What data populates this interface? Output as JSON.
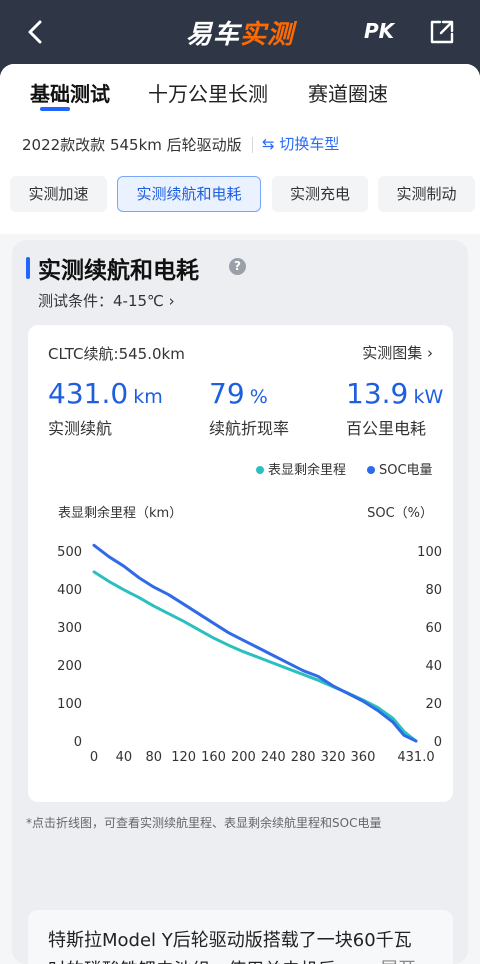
{
  "navbar": {
    "brand_part1": "易车",
    "brand_part2": "实测",
    "pk_label": "PK",
    "icons": {
      "back": "back-chevron-icon",
      "share": "share-icon"
    },
    "accent_color": "#ff6a00"
  },
  "tabs": [
    {
      "label": "基础测试",
      "active": true
    },
    {
      "label": "十万公里长测",
      "active": false
    },
    {
      "label": "赛道圈速",
      "active": false
    }
  ],
  "model": {
    "name": "2022款改款 545km 后轮驱动版",
    "switch_label": "切换车型"
  },
  "subtabs": [
    {
      "label": "实测加速",
      "active": false
    },
    {
      "label": "实测续航和电耗",
      "active": true
    },
    {
      "label": "实测充电",
      "active": false
    },
    {
      "label": "实测制动",
      "active": false
    }
  ],
  "section": {
    "title": "实测续航和电耗",
    "help_icon": "?",
    "condition": "测试条件：4-15℃ ›"
  },
  "summary": {
    "cltc": "CLTC续航:545.0km",
    "gallery": "实测图集 ›",
    "metrics": [
      {
        "value": "431.0",
        "unit": "km",
        "label": "实测续航"
      },
      {
        "value": "79",
        "unit": "%",
        "label": "续航折现率"
      },
      {
        "value": "13.9",
        "unit": "kW",
        "label": "百公里电耗"
      }
    ]
  },
  "chart_data": {
    "type": "line",
    "title": "",
    "xlabel": "",
    "ylabel": "表显剩余里程（km）",
    "y2label": "SOC（%）",
    "xlim": [
      0,
      431
    ],
    "ylim": [
      0,
      500
    ],
    "y2lim": [
      0,
      100
    ],
    "x_ticks": [
      "0",
      "40",
      "80",
      "120",
      "160",
      "200",
      "240",
      "280",
      "320",
      "360",
      "431.0"
    ],
    "y_ticks": [
      "500",
      "400",
      "300",
      "200",
      "100",
      "0"
    ],
    "y2_ticks": [
      "100",
      "80",
      "60",
      "40",
      "20",
      "0"
    ],
    "grid": false,
    "legend_position": "top-right",
    "series": [
      {
        "name": "表显剩余里程",
        "axis": "left",
        "color": "#2bbfbf",
        "x": [
          0,
          20,
          40,
          60,
          80,
          100,
          120,
          140,
          160,
          180,
          200,
          220,
          240,
          260,
          280,
          300,
          320,
          340,
          360,
          380,
          400,
          415,
          431
        ],
        "y": [
          445,
          420,
          398,
          378,
          355,
          335,
          315,
          293,
          271,
          252,
          235,
          220,
          205,
          190,
          175,
          160,
          143,
          126,
          108,
          88,
          60,
          25,
          0
        ]
      },
      {
        "name": "SOC电量",
        "axis": "right",
        "color": "#2f6be8",
        "x": [
          0,
          20,
          40,
          60,
          80,
          100,
          120,
          140,
          160,
          180,
          200,
          220,
          240,
          260,
          280,
          300,
          320,
          340,
          360,
          380,
          400,
          415,
          431
        ],
        "y": [
          103,
          97,
          92,
          86,
          81,
          77,
          72,
          67,
          62,
          57,
          53,
          49,
          45,
          41,
          37,
          34,
          29,
          25,
          21,
          16,
          10,
          3,
          0
        ]
      }
    ]
  },
  "tip": "*点击折线图，可查看实测续航里程、表显剩余续航里程和SOC电量",
  "intro": {
    "line1": "特斯拉Model Y后轮驱动版搭载了一块60千瓦",
    "line2": "时的磷酸铁锂电池组，使用单电机后...",
    "expand_label": "展开▾"
  }
}
